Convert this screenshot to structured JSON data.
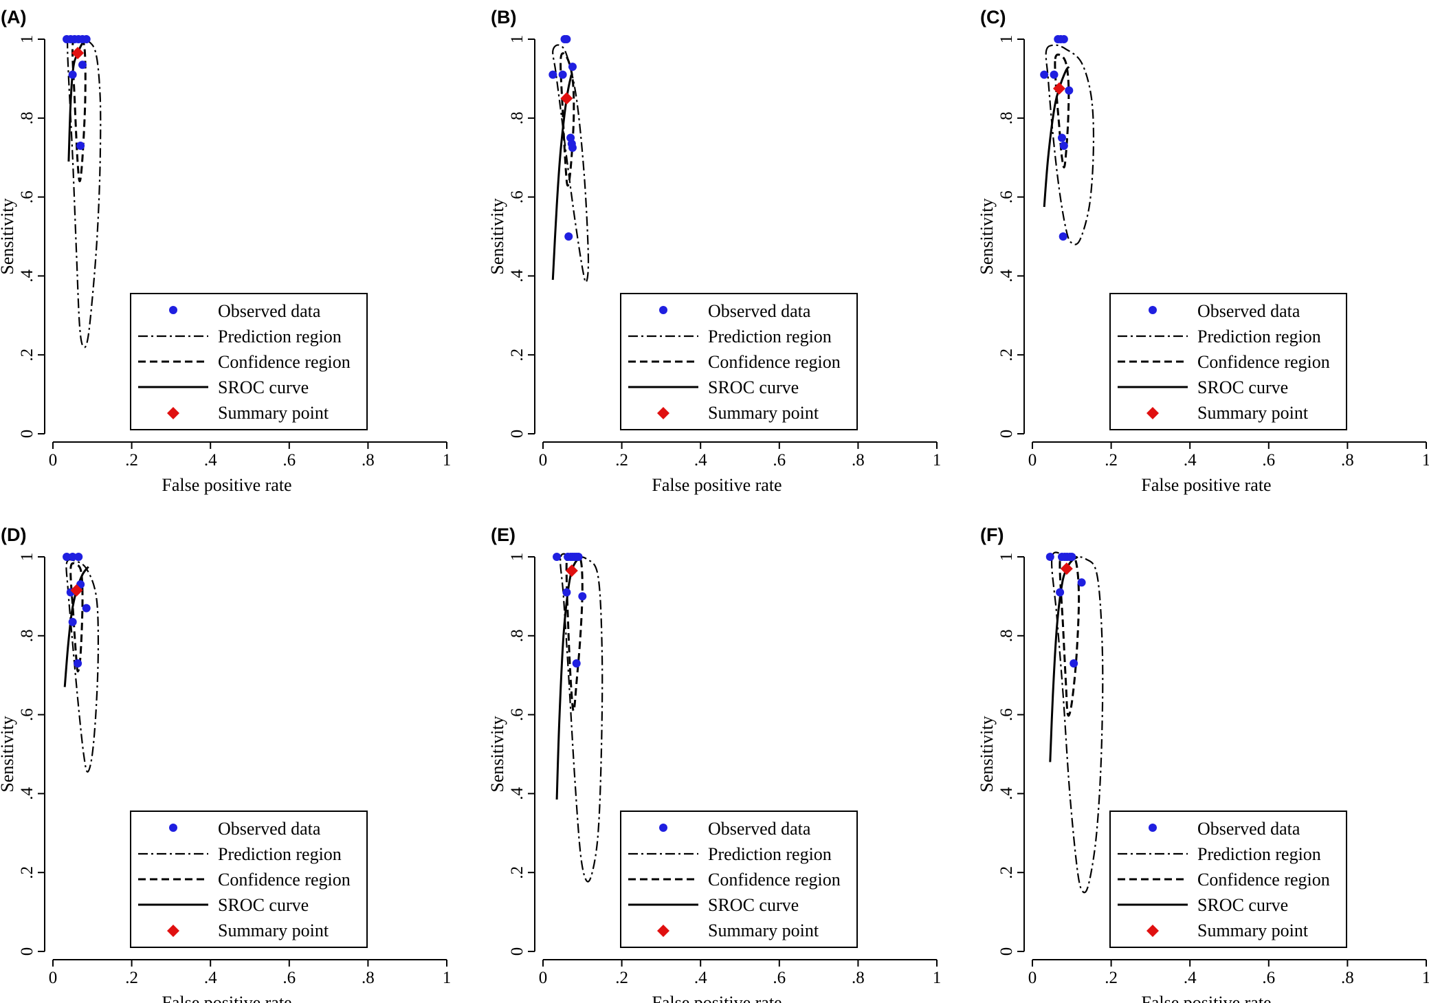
{
  "legend": {
    "position": "inside-lower-right",
    "items": [
      {
        "key": "observed",
        "label": "Observed data",
        "symbol": "circle",
        "color": "#1f1fe0"
      },
      {
        "key": "prediction",
        "label": "Prediction region",
        "symbol": "dash-dot line",
        "color": "#000000"
      },
      {
        "key": "confidence",
        "label": "Confidence region",
        "symbol": "dashed line",
        "color": "#000000"
      },
      {
        "key": "sroc",
        "label": "SROC curve",
        "symbol": "solid line",
        "color": "#000000"
      },
      {
        "key": "summary",
        "label": "Summary point",
        "symbol": "diamond",
        "color": "#e01010"
      }
    ]
  },
  "chart_data": [
    {
      "type": "scatter",
      "panel": "(A)",
      "xlabel": "False positive rate",
      "ylabel": "Sensitivity",
      "xlim": [
        0,
        1
      ],
      "ylim": [
        0,
        1
      ],
      "xticks": [
        "0",
        ".2",
        ".4",
        ".6",
        ".8",
        "1"
      ],
      "yticks": [
        "0",
        ".2",
        ".4",
        ".6",
        ".8",
        "1"
      ],
      "grid": false,
      "observed": [
        [
          0.035,
          1.0
        ],
        [
          0.045,
          1.0
        ],
        [
          0.055,
          1.0
        ],
        [
          0.065,
          1.0
        ],
        [
          0.075,
          1.0
        ],
        [
          0.085,
          1.0
        ],
        [
          0.05,
          0.91
        ],
        [
          0.075,
          0.935
        ],
        [
          0.07,
          0.73
        ]
      ],
      "summary": [
        0.063,
        0.965
      ],
      "sroc": [
        [
          0.04,
          0.69
        ],
        [
          0.045,
          0.84
        ],
        [
          0.052,
          0.93
        ],
        [
          0.063,
          0.965
        ],
        [
          0.075,
          0.99
        ],
        [
          0.085,
          1.0
        ]
      ],
      "prediction_region": [
        [
          0.04,
          1.0
        ],
        [
          0.06,
          1.0
        ],
        [
          0.09,
          0.995
        ],
        [
          0.11,
          0.96
        ],
        [
          0.12,
          0.85
        ],
        [
          0.12,
          0.7
        ],
        [
          0.115,
          0.55
        ],
        [
          0.105,
          0.4
        ],
        [
          0.09,
          0.25
        ],
        [
          0.078,
          0.22
        ],
        [
          0.068,
          0.27
        ],
        [
          0.06,
          0.45
        ],
        [
          0.05,
          0.7
        ],
        [
          0.04,
          0.9
        ],
        [
          0.037,
          0.98
        ],
        [
          0.04,
          1.0
        ]
      ],
      "confidence_region": [
        [
          0.05,
          0.985
        ],
        [
          0.065,
          0.995
        ],
        [
          0.08,
          0.98
        ],
        [
          0.082,
          0.85
        ],
        [
          0.075,
          0.7
        ],
        [
          0.068,
          0.64
        ],
        [
          0.062,
          0.7
        ],
        [
          0.055,
          0.85
        ],
        [
          0.05,
          0.985
        ]
      ]
    },
    {
      "type": "scatter",
      "panel": "(B)",
      "xlabel": "False positive rate",
      "ylabel": "Sensitivity",
      "xlim": [
        0,
        1
      ],
      "ylim": [
        0,
        1
      ],
      "xticks": [
        "0",
        ".2",
        ".4",
        ".6",
        ".8",
        "1"
      ],
      "yticks": [
        "0",
        ".2",
        ".4",
        ".6",
        ".8",
        "1"
      ],
      "grid": false,
      "observed": [
        [
          0.055,
          1.0
        ],
        [
          0.06,
          1.0
        ],
        [
          0.025,
          0.91
        ],
        [
          0.05,
          0.91
        ],
        [
          0.075,
          0.93
        ],
        [
          0.07,
          0.75
        ],
        [
          0.073,
          0.735
        ],
        [
          0.075,
          0.725
        ],
        [
          0.065,
          0.5
        ]
      ],
      "summary": [
        0.06,
        0.85
      ],
      "sroc": [
        [
          0.025,
          0.39
        ],
        [
          0.035,
          0.58
        ],
        [
          0.045,
          0.72
        ],
        [
          0.06,
          0.85
        ],
        [
          0.072,
          0.91
        ]
      ],
      "prediction_region": [
        [
          0.025,
          0.97
        ],
        [
          0.04,
          0.985
        ],
        [
          0.06,
          0.96
        ],
        [
          0.085,
          0.85
        ],
        [
          0.105,
          0.65
        ],
        [
          0.115,
          0.45
        ],
        [
          0.11,
          0.385
        ],
        [
          0.1,
          0.42
        ],
        [
          0.08,
          0.55
        ],
        [
          0.06,
          0.7
        ],
        [
          0.045,
          0.82
        ],
        [
          0.032,
          0.92
        ],
        [
          0.025,
          0.97
        ]
      ],
      "confidence_region": [
        [
          0.045,
          0.95
        ],
        [
          0.06,
          0.955
        ],
        [
          0.075,
          0.9
        ],
        [
          0.078,
          0.8
        ],
        [
          0.07,
          0.67
        ],
        [
          0.062,
          0.63
        ],
        [
          0.056,
          0.7
        ],
        [
          0.05,
          0.82
        ],
        [
          0.045,
          0.95
        ]
      ]
    },
    {
      "type": "scatter",
      "panel": "(C)",
      "xlabel": "False positive rate",
      "ylabel": "Sensitivity",
      "xlim": [
        0,
        1
      ],
      "ylim": [
        0,
        1
      ],
      "xticks": [
        "0",
        ".2",
        ".4",
        ".6",
        ".8",
        "1"
      ],
      "yticks": [
        "0",
        ".2",
        ".4",
        ".6",
        ".8",
        "1"
      ],
      "grid": false,
      "observed": [
        [
          0.065,
          1.0
        ],
        [
          0.072,
          1.0
        ],
        [
          0.08,
          1.0
        ],
        [
          0.03,
          0.91
        ],
        [
          0.055,
          0.91
        ],
        [
          0.093,
          0.87
        ],
        [
          0.075,
          0.75
        ],
        [
          0.08,
          0.73
        ],
        [
          0.078,
          0.5
        ]
      ],
      "summary": [
        0.068,
        0.875
      ],
      "sroc": [
        [
          0.03,
          0.575
        ],
        [
          0.04,
          0.7
        ],
        [
          0.055,
          0.82
        ],
        [
          0.068,
          0.875
        ],
        [
          0.085,
          0.92
        ],
        [
          0.093,
          0.93
        ]
      ],
      "prediction_region": [
        [
          0.035,
          0.97
        ],
        [
          0.055,
          0.985
        ],
        [
          0.085,
          0.975
        ],
        [
          0.125,
          0.94
        ],
        [
          0.15,
          0.85
        ],
        [
          0.155,
          0.72
        ],
        [
          0.145,
          0.58
        ],
        [
          0.12,
          0.49
        ],
        [
          0.098,
          0.485
        ],
        [
          0.085,
          0.52
        ],
        [
          0.068,
          0.62
        ],
        [
          0.052,
          0.76
        ],
        [
          0.04,
          0.9
        ],
        [
          0.035,
          0.97
        ]
      ],
      "confidence_region": [
        [
          0.058,
          0.95
        ],
        [
          0.07,
          0.96
        ],
        [
          0.085,
          0.94
        ],
        [
          0.092,
          0.88
        ],
        [
          0.09,
          0.78
        ],
        [
          0.082,
          0.68
        ],
        [
          0.075,
          0.7
        ],
        [
          0.068,
          0.78
        ],
        [
          0.06,
          0.88
        ],
        [
          0.058,
          0.95
        ]
      ]
    },
    {
      "type": "scatter",
      "panel": "(D)",
      "xlabel": "False positive rate",
      "ylabel": "Sensitivity",
      "xlim": [
        0,
        1
      ],
      "ylim": [
        0,
        1
      ],
      "xticks": [
        "0",
        ".2",
        ".4",
        ".6",
        ".8",
        "1"
      ],
      "yticks": [
        "0",
        ".2",
        ".4",
        ".6",
        ".8",
        "1"
      ],
      "grid": false,
      "observed": [
        [
          0.035,
          1.0
        ],
        [
          0.05,
          1.0
        ],
        [
          0.065,
          1.0
        ],
        [
          0.045,
          0.91
        ],
        [
          0.07,
          0.93
        ],
        [
          0.085,
          0.87
        ],
        [
          0.05,
          0.835
        ],
        [
          0.063,
          0.73
        ]
      ],
      "summary": [
        0.06,
        0.915
      ],
      "sroc": [
        [
          0.03,
          0.67
        ],
        [
          0.038,
          0.77
        ],
        [
          0.048,
          0.86
        ],
        [
          0.06,
          0.915
        ],
        [
          0.075,
          0.955
        ],
        [
          0.09,
          0.975
        ]
      ],
      "prediction_region": [
        [
          0.035,
          0.985
        ],
        [
          0.055,
          0.99
        ],
        [
          0.085,
          0.97
        ],
        [
          0.11,
          0.9
        ],
        [
          0.115,
          0.77
        ],
        [
          0.11,
          0.62
        ],
        [
          0.1,
          0.5
        ],
        [
          0.088,
          0.455
        ],
        [
          0.078,
          0.5
        ],
        [
          0.065,
          0.62
        ],
        [
          0.05,
          0.78
        ],
        [
          0.038,
          0.92
        ],
        [
          0.035,
          0.985
        ]
      ],
      "confidence_region": [
        [
          0.045,
          0.97
        ],
        [
          0.06,
          0.98
        ],
        [
          0.072,
          0.96
        ],
        [
          0.075,
          0.88
        ],
        [
          0.07,
          0.75
        ],
        [
          0.063,
          0.71
        ],
        [
          0.058,
          0.76
        ],
        [
          0.052,
          0.85
        ],
        [
          0.045,
          0.97
        ]
      ]
    },
    {
      "type": "scatter",
      "panel": "(E)",
      "xlabel": "False positive rate",
      "ylabel": "Sensitivity",
      "xlim": [
        0,
        1
      ],
      "ylim": [
        0,
        1
      ],
      "xticks": [
        "0",
        ".2",
        ".4",
        ".6",
        ".8",
        "1"
      ],
      "yticks": [
        "0",
        ".2",
        ".4",
        ".6",
        ".8",
        "1"
      ],
      "grid": false,
      "observed": [
        [
          0.035,
          1.0
        ],
        [
          0.063,
          1.0
        ],
        [
          0.07,
          1.0
        ],
        [
          0.075,
          1.0
        ],
        [
          0.08,
          1.0
        ],
        [
          0.085,
          1.0
        ],
        [
          0.09,
          1.0
        ],
        [
          0.06,
          0.91
        ],
        [
          0.1,
          0.9
        ],
        [
          0.085,
          0.73
        ]
      ],
      "summary": [
        0.073,
        0.965
      ],
      "sroc": [
        [
          0.035,
          0.385
        ],
        [
          0.042,
          0.6
        ],
        [
          0.052,
          0.8
        ],
        [
          0.063,
          0.91
        ],
        [
          0.073,
          0.965
        ],
        [
          0.085,
          0.99
        ],
        [
          0.1,
          1.0
        ]
      ],
      "prediction_region": [
        [
          0.045,
          1.0
        ],
        [
          0.075,
          1.0
        ],
        [
          0.11,
          0.995
        ],
        [
          0.14,
          0.95
        ],
        [
          0.15,
          0.75
        ],
        [
          0.148,
          0.5
        ],
        [
          0.14,
          0.3
        ],
        [
          0.125,
          0.2
        ],
        [
          0.11,
          0.18
        ],
        [
          0.095,
          0.25
        ],
        [
          0.08,
          0.45
        ],
        [
          0.065,
          0.7
        ],
        [
          0.052,
          0.9
        ],
        [
          0.045,
          1.0
        ]
      ],
      "confidence_region": [
        [
          0.06,
          0.99
        ],
        [
          0.075,
          1.0
        ],
        [
          0.095,
          0.995
        ],
        [
          0.1,
          0.92
        ],
        [
          0.095,
          0.8
        ],
        [
          0.085,
          0.68
        ],
        [
          0.078,
          0.61
        ],
        [
          0.072,
          0.66
        ],
        [
          0.065,
          0.8
        ],
        [
          0.06,
          0.99
        ]
      ]
    },
    {
      "type": "scatter",
      "panel": "(F)",
      "xlabel": "False positive rate",
      "ylabel": "Sensitivity",
      "xlim": [
        0,
        1
      ],
      "ylim": [
        0,
        1
      ],
      "xticks": [
        "0",
        ".2",
        ".4",
        ".6",
        ".8",
        "1"
      ],
      "yticks": [
        "0",
        ".2",
        ".4",
        ".6",
        ".8",
        "1"
      ],
      "grid": false,
      "observed": [
        [
          0.045,
          1.0
        ],
        [
          0.075,
          1.0
        ],
        [
          0.082,
          1.0
        ],
        [
          0.088,
          1.0
        ],
        [
          0.095,
          1.0
        ],
        [
          0.1,
          1.0
        ],
        [
          0.07,
          0.91
        ],
        [
          0.125,
          0.935
        ],
        [
          0.105,
          0.73
        ]
      ],
      "summary": [
        0.087,
        0.97
      ],
      "sroc": [
        [
          0.045,
          0.48
        ],
        [
          0.052,
          0.65
        ],
        [
          0.062,
          0.82
        ],
        [
          0.075,
          0.93
        ],
        [
          0.087,
          0.97
        ],
        [
          0.1,
          0.99
        ],
        [
          0.115,
          1.0
        ]
      ],
      "prediction_region": [
        [
          0.05,
          1.0
        ],
        [
          0.09,
          1.0
        ],
        [
          0.135,
          0.995
        ],
        [
          0.165,
          0.95
        ],
        [
          0.178,
          0.75
        ],
        [
          0.175,
          0.5
        ],
        [
          0.163,
          0.3
        ],
        [
          0.145,
          0.18
        ],
        [
          0.13,
          0.15
        ],
        [
          0.115,
          0.2
        ],
        [
          0.095,
          0.4
        ],
        [
          0.078,
          0.65
        ],
        [
          0.062,
          0.85
        ],
        [
          0.05,
          1.0
        ]
      ],
      "confidence_region": [
        [
          0.07,
          0.99
        ],
        [
          0.09,
          1.0
        ],
        [
          0.11,
          0.99
        ],
        [
          0.118,
          0.9
        ],
        [
          0.112,
          0.75
        ],
        [
          0.1,
          0.63
        ],
        [
          0.09,
          0.6
        ],
        [
          0.085,
          0.68
        ],
        [
          0.078,
          0.82
        ],
        [
          0.07,
          0.99
        ]
      ]
    }
  ]
}
